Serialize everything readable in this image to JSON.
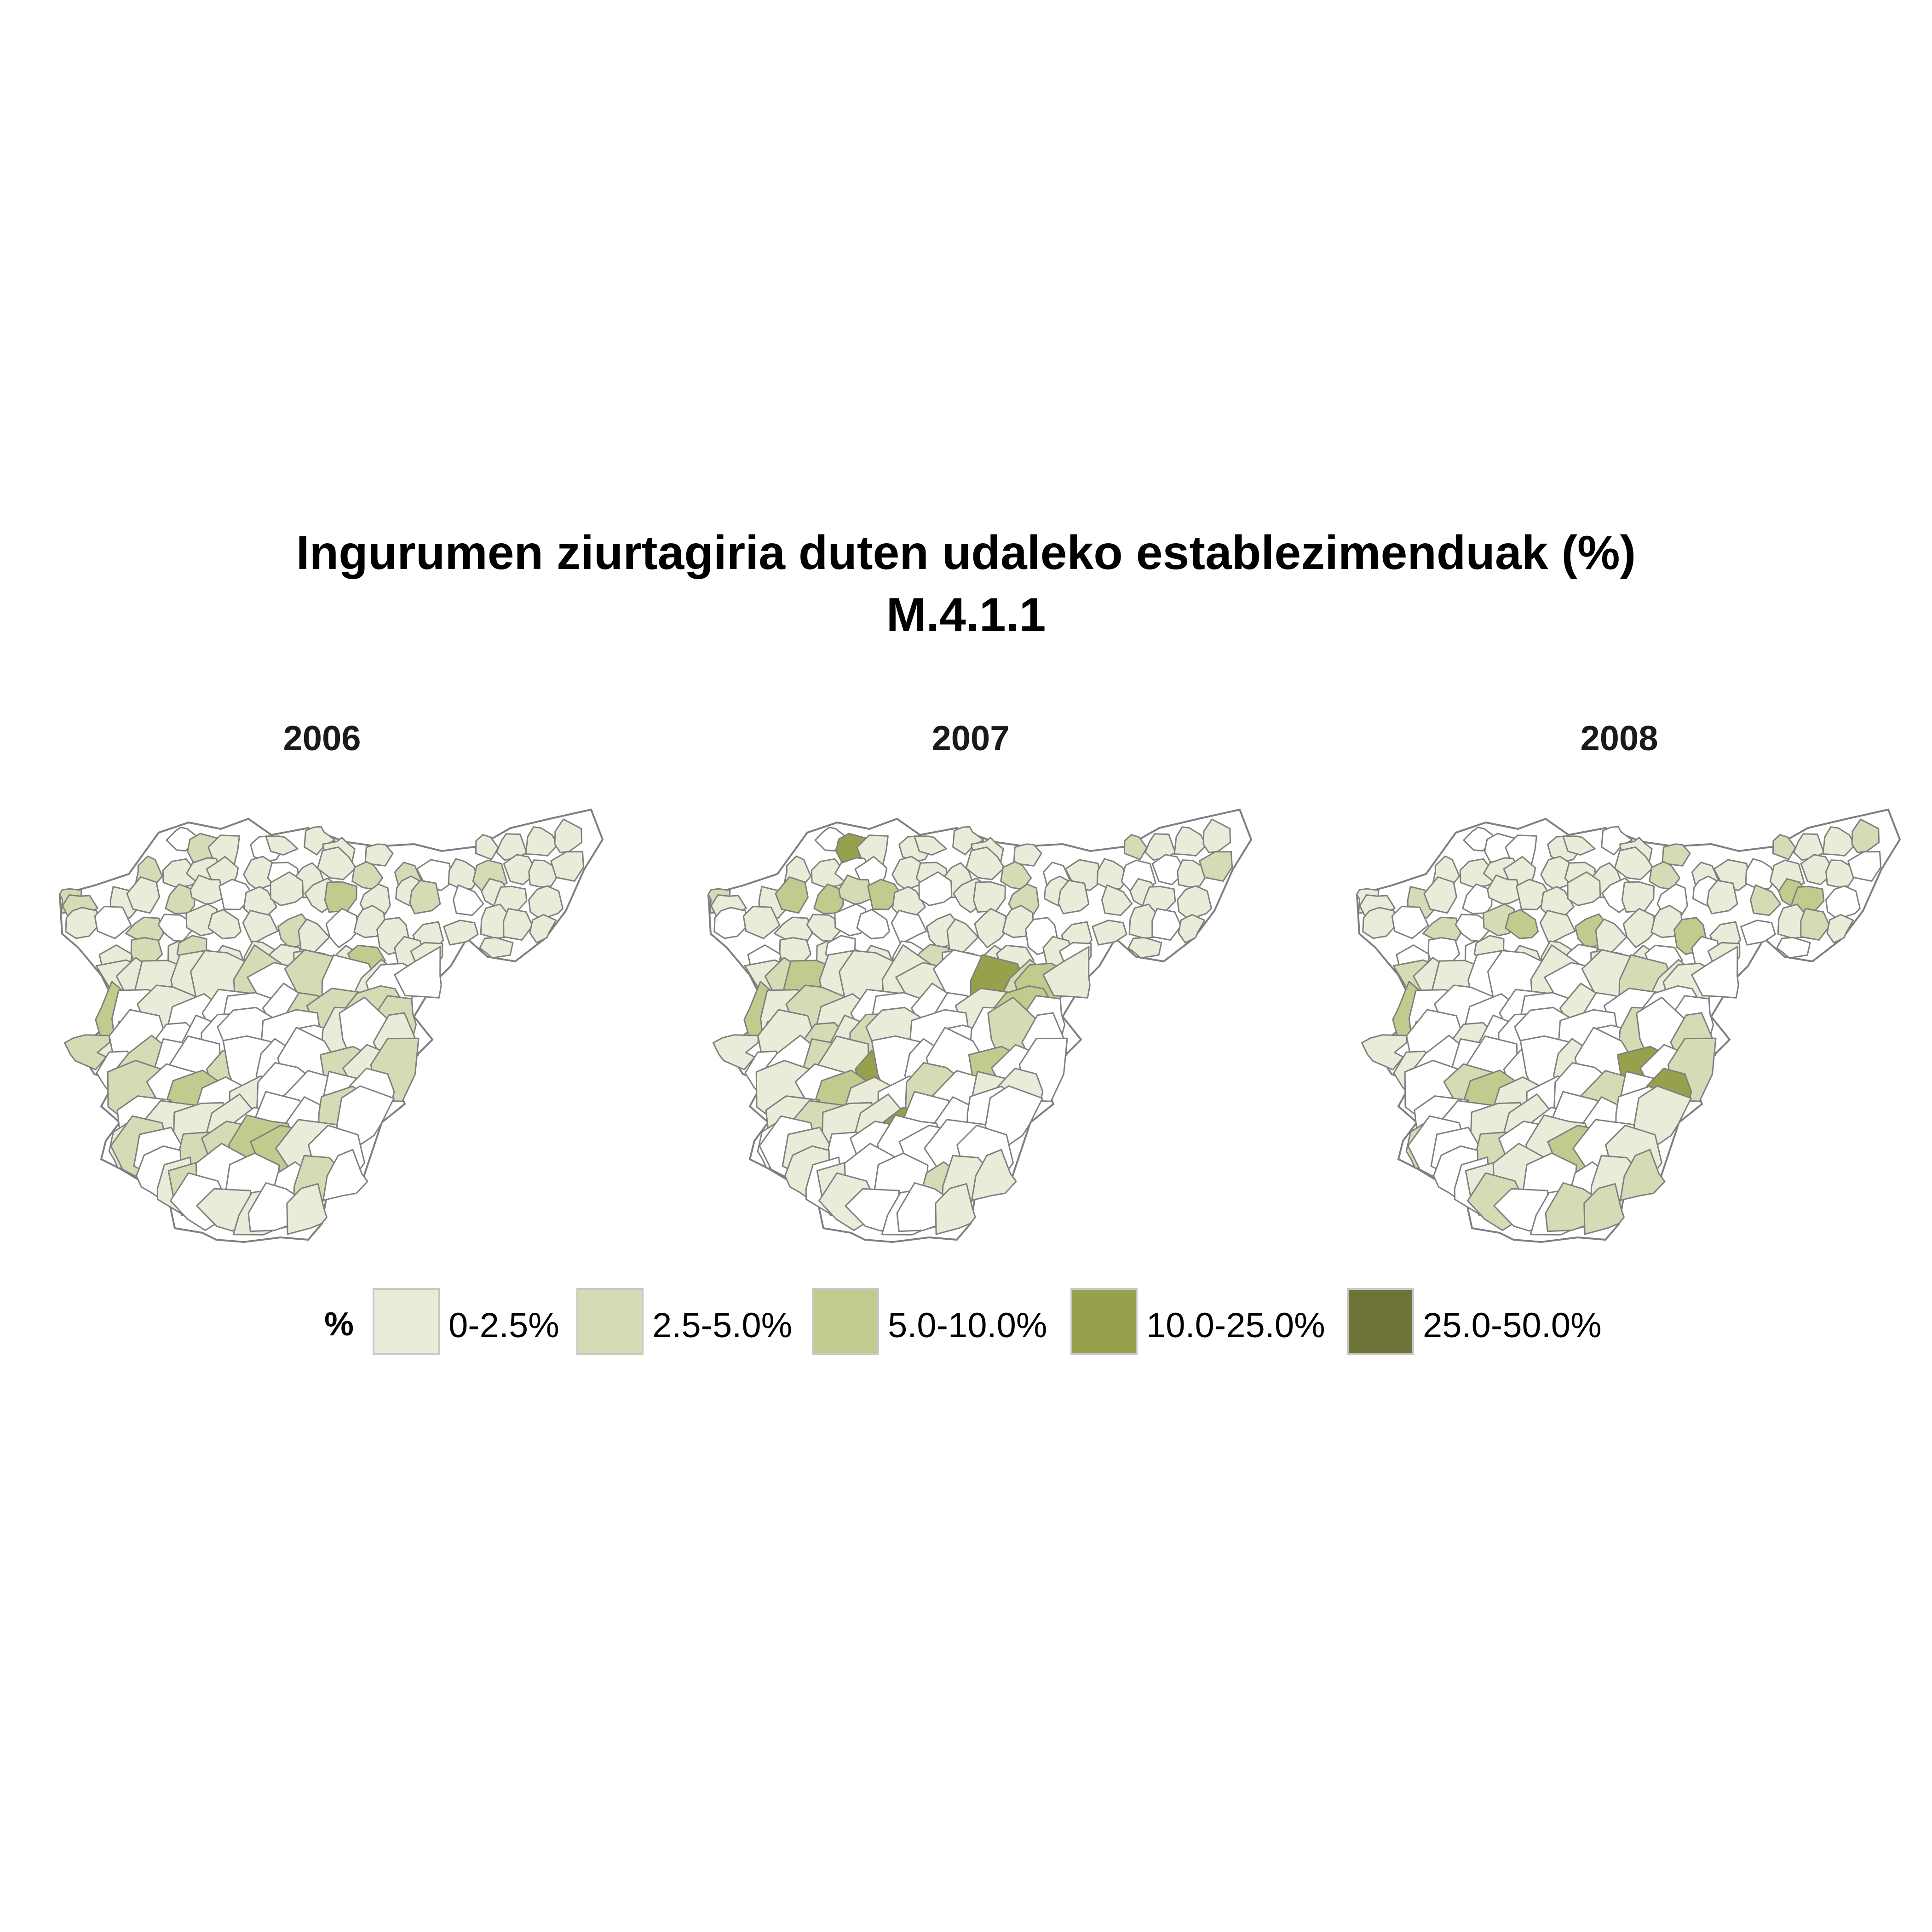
{
  "title": {
    "line1": "Ingurumen ziurtagiria duten udaleko establezimenduak (%)",
    "line2": "M.4.1.1"
  },
  "panels": [
    {
      "year": "2006"
    },
    {
      "year": "2007"
    },
    {
      "year": "2008"
    }
  ],
  "legend": {
    "title": "%",
    "items": [
      {
        "label": "0-2.5%",
        "color": "#eaecd9"
      },
      {
        "label": "2.5-5.0%",
        "color": "#d5dbb5"
      },
      {
        "label": "5.0-10.0%",
        "color": "#c2ca8e"
      },
      {
        "label": "10.0-25.0%",
        "color": "#97a04b"
      },
      {
        "label": "25.0-50.0%",
        "color": "#6e7438"
      }
    ],
    "no_data_color": "#ffffff",
    "border_color": "#7f7f7f"
  }
}
